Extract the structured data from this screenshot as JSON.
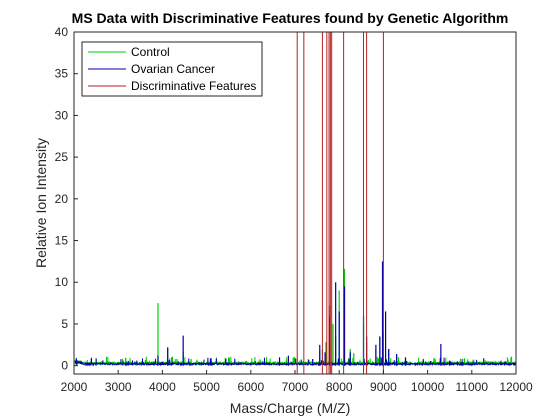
{
  "chart_data": {
    "type": "line",
    "title": "MS Data with Discriminative Features found by Genetic Algorithm",
    "xlabel": "Mass/Charge (M/Z)",
    "ylabel": "Relative Ion Intensity",
    "xlim": [
      2000,
      12000
    ],
    "ylim": [
      -1,
      40
    ],
    "xticks": [
      2000,
      3000,
      4000,
      5000,
      6000,
      7000,
      8000,
      9000,
      10000,
      11000,
      12000
    ],
    "yticks": [
      0,
      5,
      10,
      15,
      20,
      25,
      30,
      35,
      40
    ],
    "grid": false,
    "legend_position": "top-left",
    "series": [
      {
        "name": "Control",
        "color": "#00cc00",
        "baseline": 0.3,
        "peaks": [
          [
            2050,
            0.8
          ],
          [
            2500,
            0.6
          ],
          [
            3100,
            0.5
          ],
          [
            3400,
            0.4
          ],
          [
            3900,
            7.5
          ],
          [
            4120,
            2.0
          ],
          [
            4470,
            1.7
          ],
          [
            4650,
            0.8
          ],
          [
            5100,
            0.6
          ],
          [
            5500,
            0.4
          ],
          [
            6650,
            0.6
          ],
          [
            7050,
            0.9
          ],
          [
            7300,
            0.8
          ],
          [
            7560,
            1.8
          ],
          [
            7620,
            2.0
          ],
          [
            7700,
            2.8
          ],
          [
            7780,
            7.2
          ],
          [
            7860,
            5.0
          ],
          [
            7920,
            3.5
          ],
          [
            8000,
            9.0
          ],
          [
            8120,
            11.6
          ],
          [
            8250,
            2.0
          ],
          [
            8330,
            1.5
          ],
          [
            8550,
            5.0
          ],
          [
            8620,
            2.8
          ],
          [
            8830,
            2.0
          ],
          [
            8920,
            3.5
          ],
          [
            9000,
            4.0
          ],
          [
            9120,
            2.0
          ],
          [
            9300,
            1.2
          ],
          [
            9500,
            0.8
          ],
          [
            10300,
            1.0
          ],
          [
            11000,
            0.4
          ]
        ]
      },
      {
        "name": "Ovarian Cancer",
        "color": "#0000aa",
        "baseline": 0.2,
        "peaks": [
          [
            3900,
            1.2
          ],
          [
            4120,
            2.2
          ],
          [
            4470,
            3.6
          ],
          [
            5100,
            0.9
          ],
          [
            6650,
            1.0
          ],
          [
            6850,
            1.2
          ],
          [
            7400,
            0.8
          ],
          [
            7560,
            2.5
          ],
          [
            7680,
            1.6
          ],
          [
            7780,
            6.0
          ],
          [
            7920,
            10.0
          ],
          [
            8000,
            6.5
          ],
          [
            8120,
            9.5
          ],
          [
            8250,
            1.6
          ],
          [
            8550,
            6.0
          ],
          [
            8620,
            3.5
          ],
          [
            8830,
            2.5
          ],
          [
            8920,
            3.5
          ],
          [
            8980,
            12.5
          ],
          [
            9050,
            6.5
          ],
          [
            9120,
            2.0
          ],
          [
            9300,
            1.4
          ],
          [
            9500,
            1.0
          ],
          [
            10300,
            2.6
          ],
          [
            10500,
            0.6
          ]
        ]
      }
    ],
    "features": {
      "name": "Discriminative Features",
      "color": "#b22222",
      "x": [
        7050,
        7200,
        7620,
        7720,
        7770,
        7800,
        7830,
        8100,
        8550,
        8620,
        9000
      ]
    }
  }
}
